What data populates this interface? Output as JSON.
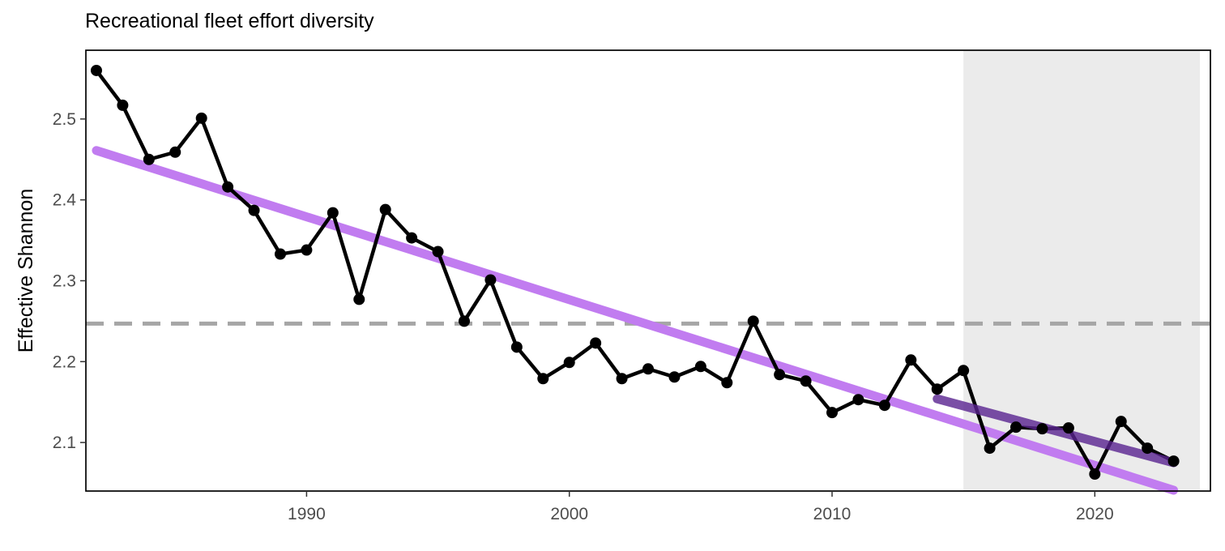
{
  "chart_data": {
    "type": "line",
    "title": "Recreational fleet effort diversity",
    "xlabel": "",
    "ylabel": "Effective Shannon",
    "xlim": [
      1981.6,
      2024.4
    ],
    "ylim": [
      2.04,
      2.585
    ],
    "x_ticks": [
      1990,
      2000,
      2010,
      2020
    ],
    "x_tick_labels": [
      "1990",
      "2000",
      "2010",
      "2020"
    ],
    "y_ticks": [
      2.1,
      2.2,
      2.3,
      2.4,
      2.5
    ],
    "y_tick_labels": [
      "2.1",
      "2.2",
      "2.3",
      "2.4",
      "2.5"
    ],
    "grid": false,
    "series": [
      {
        "x": [
          1982,
          1983,
          1984,
          1985,
          1986,
          1987,
          1988,
          1989,
          1990,
          1991,
          1992,
          1993,
          1994,
          1995,
          1996,
          1997,
          1998,
          1999,
          2000,
          2001,
          2002,
          2003,
          2004,
          2005,
          2006,
          2007,
          2008,
          2009,
          2010,
          2011,
          2012,
          2013,
          2014,
          2015,
          2016,
          2017,
          2018,
          2019,
          2020,
          2021,
          2022,
          2023
        ],
        "values": [
          2.56,
          2.517,
          2.45,
          2.459,
          2.501,
          2.416,
          2.387,
          2.333,
          2.338,
          2.384,
          2.277,
          2.388,
          2.353,
          2.336,
          2.25,
          2.301,
          2.218,
          2.179,
          2.199,
          2.223,
          2.179,
          2.191,
          2.181,
          2.194,
          2.174,
          2.25,
          2.184,
          2.176,
          2.137,
          2.153,
          2.146,
          2.202,
          2.166,
          2.189,
          2.093,
          2.119,
          2.117,
          2.118,
          2.061,
          2.126,
          2.093,
          2.077
        ],
        "color": "#000000"
      }
    ],
    "mean_line": {
      "value": 2.247,
      "color": "#a6a6a6",
      "style": "dashed"
    },
    "trend_line": {
      "x": [
        1982,
        2023
      ],
      "values": [
        2.461,
        2.041
      ],
      "color": "#c17cf0"
    },
    "recent_trend_line": {
      "x": [
        2014,
        2023
      ],
      "values": [
        2.154,
        2.075
      ],
      "color": "#5a2490"
    },
    "shaded_region": {
      "x": [
        2015,
        2024
      ],
      "color": "#ebebeb"
    }
  }
}
